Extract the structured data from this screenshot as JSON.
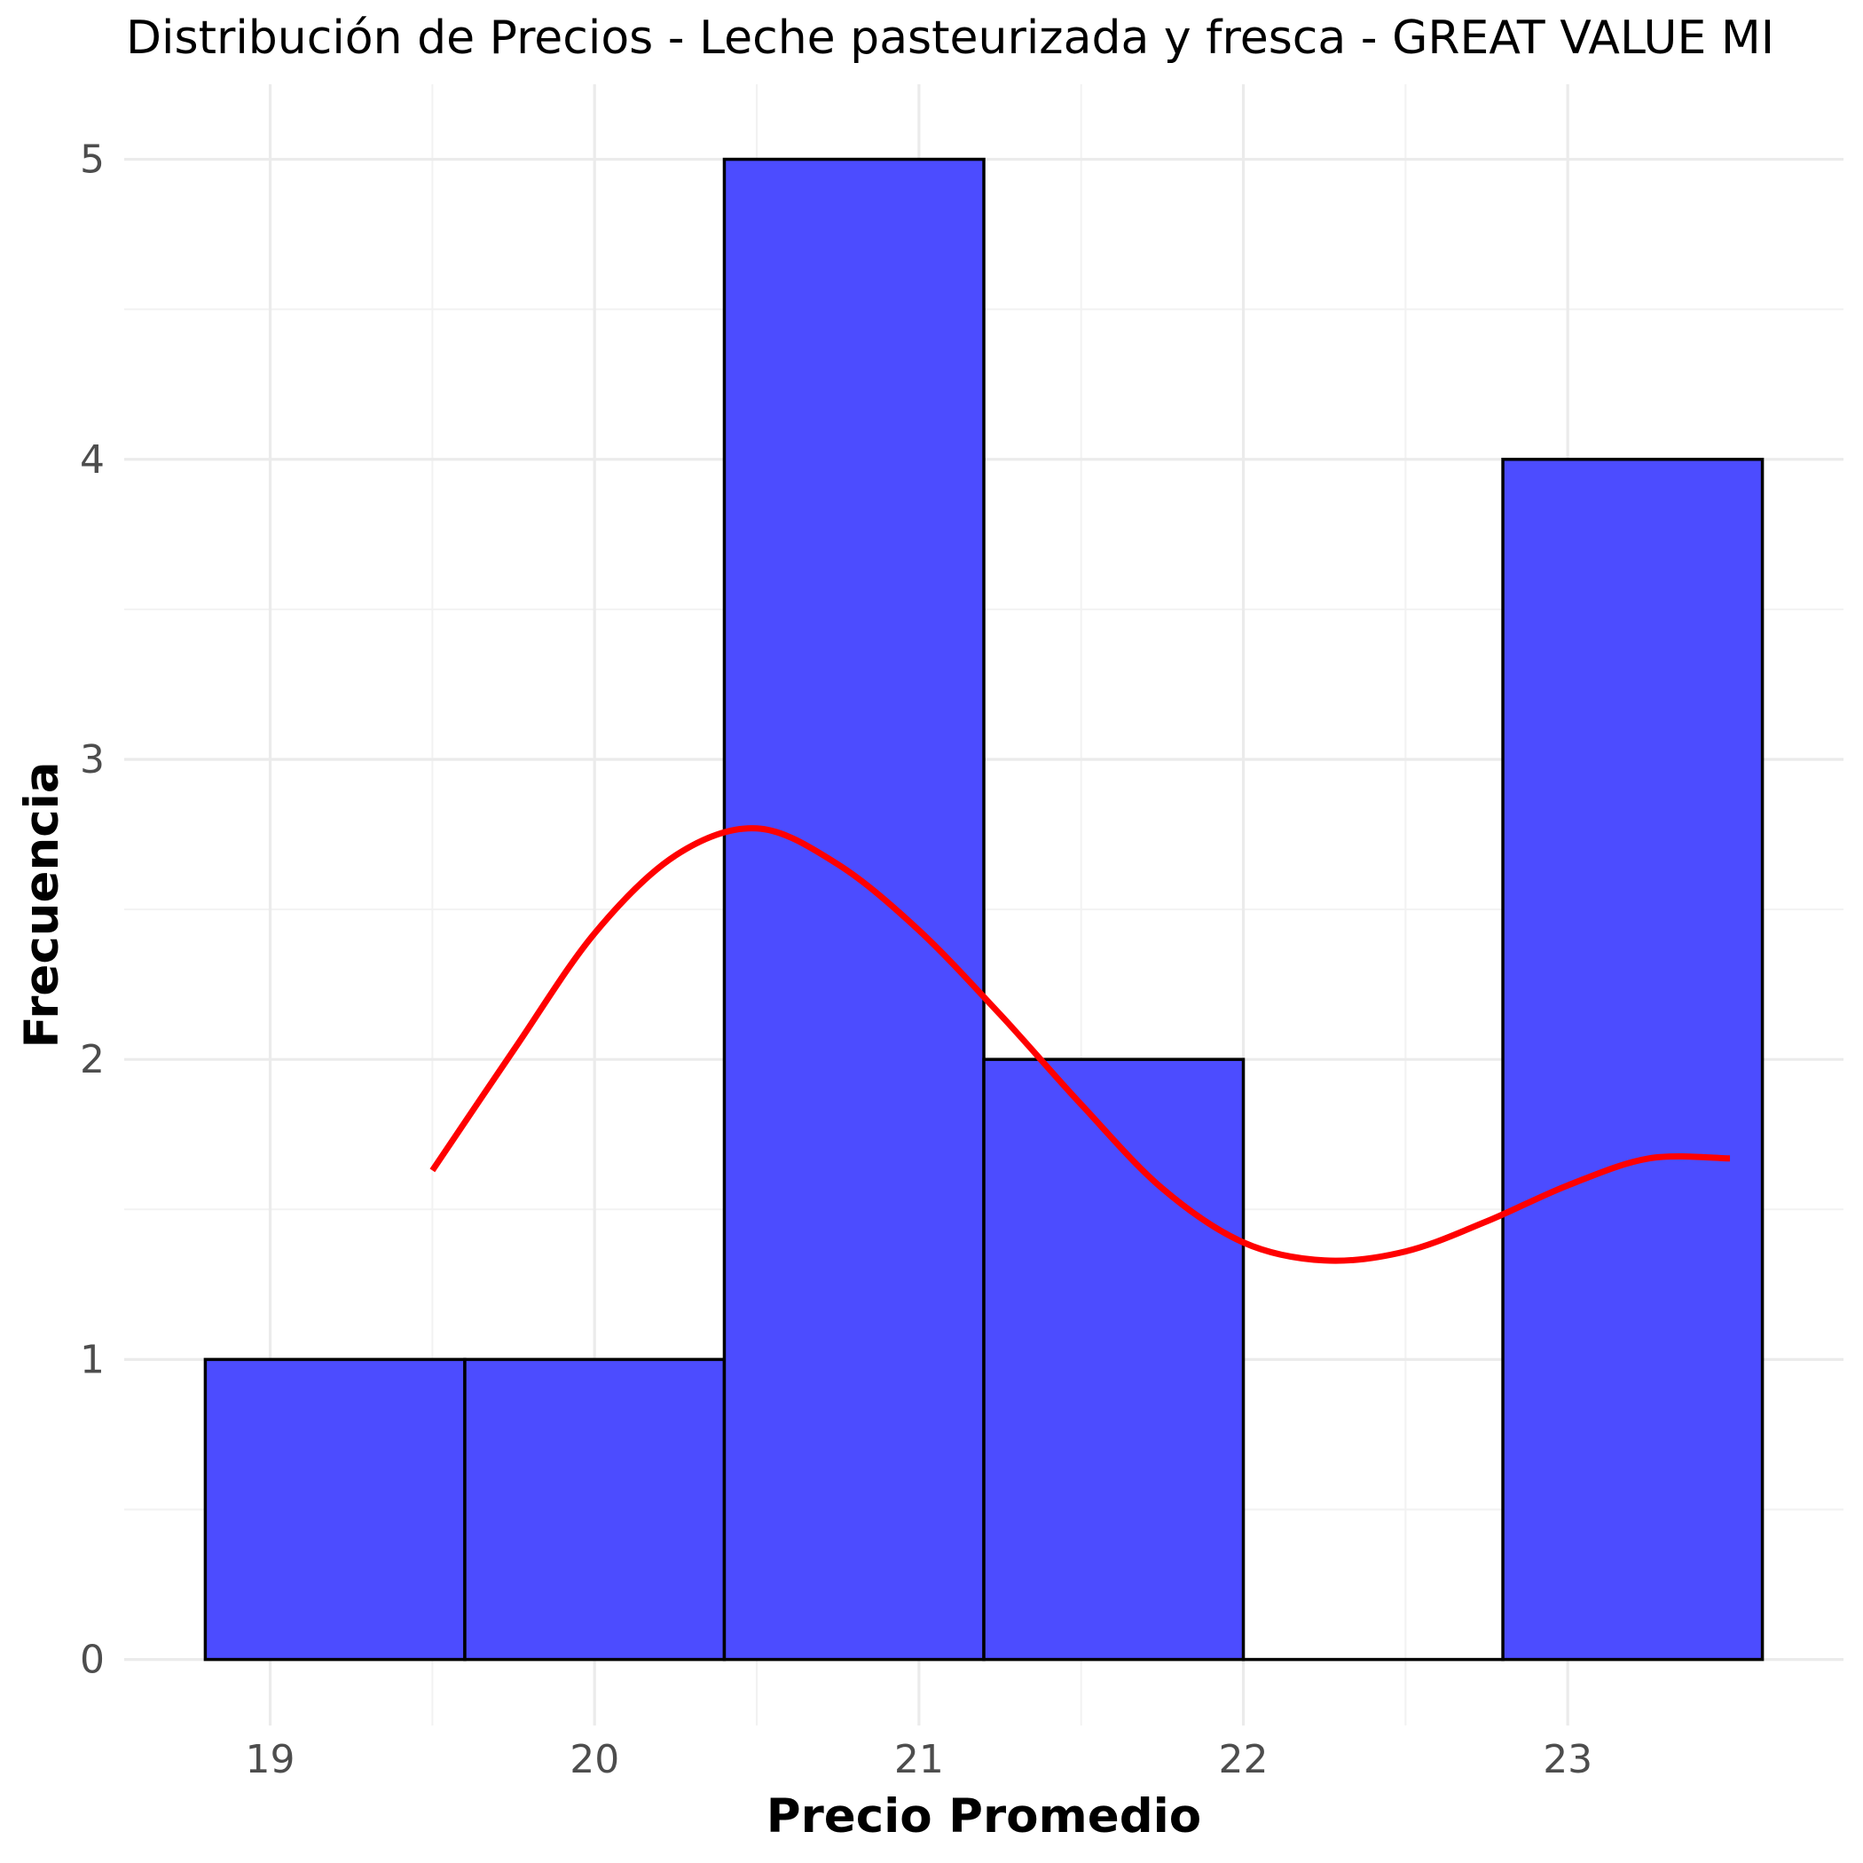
{
  "chart_data": {
    "type": "bar",
    "title": "Distribución de Precios - Leche pasteurizada y fresca - GREAT VALUE MI",
    "xlabel": "Precio Promedio",
    "ylabel": "Frecuencia",
    "bins": [
      {
        "x0": 18.8,
        "x1": 19.6,
        "count": 1
      },
      {
        "x0": 19.6,
        "x1": 20.4,
        "count": 1
      },
      {
        "x0": 20.4,
        "x1": 21.2,
        "count": 5
      },
      {
        "x0": 21.2,
        "x1": 22.0,
        "count": 2
      },
      {
        "x0": 22.0,
        "x1": 22.8,
        "count": 0
      },
      {
        "x0": 22.8,
        "x1": 23.6,
        "count": 4
      }
    ],
    "density_curve": {
      "name": "",
      "x": [
        19.5,
        19.75,
        20.0,
        20.25,
        20.5,
        20.75,
        21.0,
        21.25,
        21.5,
        21.75,
        22.0,
        22.25,
        22.5,
        22.75,
        23.0,
        23.25,
        23.5
      ],
      "y": [
        1.63,
        2.03,
        2.42,
        2.68,
        2.77,
        2.65,
        2.43,
        2.15,
        1.85,
        1.57,
        1.39,
        1.33,
        1.36,
        1.46,
        1.58,
        1.67,
        1.67
      ]
    },
    "xlim": [
      18.55,
      23.85
    ],
    "ylim": [
      -0.22,
      5.25
    ],
    "x_ticks": [
      19,
      20,
      21,
      22,
      23
    ],
    "x_tick_labels": [
      "19",
      "20",
      "21",
      "22",
      "23"
    ],
    "y_ticks": [
      0,
      1,
      2,
      3,
      4,
      5
    ],
    "y_tick_labels": [
      "0",
      "1",
      "2",
      "3",
      "4",
      "5"
    ],
    "grid": true,
    "legend": "none",
    "colors": {
      "bar_fill": "#4C4CFF",
      "bar_stroke": "#000000",
      "curve": "#FF0000",
      "grid_major": "#EBEBEB",
      "grid_minor": "#F2F2F2",
      "tick_text": "#4D4D4D"
    }
  }
}
